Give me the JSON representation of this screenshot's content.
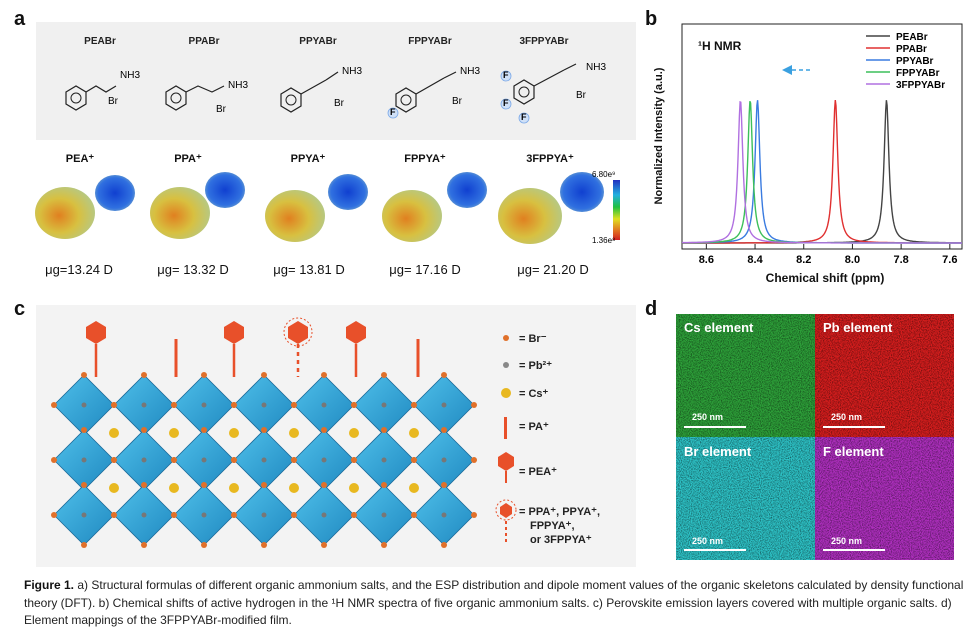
{
  "panels": {
    "a": "a",
    "b": "b",
    "c": "c",
    "d": "d"
  },
  "panel_a": {
    "molecules": [
      {
        "name": "PEABr",
        "ammonium": "NH3",
        "counter": "Br"
      },
      {
        "name": "PPABr",
        "ammonium": "NH3",
        "counter": "Br"
      },
      {
        "name": "PPYABr",
        "ammonium": "NH3",
        "counter": "Br"
      },
      {
        "name": "FPPYABr",
        "ammonium": "NH3",
        "counter": "Br"
      },
      {
        "name": "3FPPYABr",
        "ammonium": "NH3",
        "counter": "Br"
      }
    ],
    "fluorine_label": "F",
    "cations": [
      "PEA⁺",
      "PPA⁺",
      "PPYA⁺",
      "FPPYA⁺",
      "3FPPYA⁺"
    ],
    "dipoles": [
      "μg=13.24 D",
      "μg= 13.32 D",
      "μg= 13.81 D",
      "μg= 17.16 D",
      "μg= 21.20 D"
    ],
    "colorbar": {
      "max": "6.80e⁹",
      "min": "1.36e⁸"
    }
  },
  "chart_data": {
    "type": "line",
    "title": "¹H NMR",
    "xlabel": "Chemical shift (ppm)",
    "ylabel": "Normalized Intensity (a.u.)",
    "xlim": [
      8.7,
      7.55
    ],
    "x_ticks": [
      8.6,
      8.4,
      8.2,
      8.0,
      7.8,
      7.6
    ],
    "x_tick_labels": [
      "8.6",
      "8.4",
      "8.2",
      "8.0",
      "7.8",
      "7.6"
    ],
    "series": [
      {
        "name": "PEABr",
        "peak_ppm": 7.86,
        "color": "#444444"
      },
      {
        "name": "PPABr",
        "peak_ppm": 8.07,
        "color": "#e03030"
      },
      {
        "name": "PPYABr",
        "peak_ppm": 8.39,
        "color": "#3a7be0"
      },
      {
        "name": "FPPYABr",
        "peak_ppm": 8.42,
        "color": "#3cbf5a"
      },
      {
        "name": "3FPPYABr",
        "peak_ppm": 8.46,
        "color": "#b070e0"
      }
    ],
    "legend_position": "top-right"
  },
  "panel_c": {
    "legend": [
      {
        "label": "= Br⁻"
      },
      {
        "label": "= Pb²⁺"
      },
      {
        "label": "= Cs⁺"
      },
      {
        "label": "= PA⁺"
      },
      {
        "label": "= PEA⁺"
      },
      {
        "label_lines": [
          "= PPA⁺, PPYA⁺,",
          "FPPYA⁺,",
          "or 3FPPYA⁺"
        ]
      }
    ]
  },
  "panel_d": {
    "maps": [
      {
        "label": "Cs element",
        "scale": "250 nm",
        "color": "#2ea23a"
      },
      {
        "label": "Pb element",
        "scale": "250 nm",
        "color": "#d81e1e"
      },
      {
        "label": "Br element",
        "scale": "250 nm",
        "color": "#2ec4c8"
      },
      {
        "label": "F element",
        "scale": "250 nm",
        "color": "#b030c0"
      }
    ]
  },
  "caption": {
    "figure": "Figure 1.",
    "text": "a) Structural formulas of different organic ammonium salts, and the ESP distribution and dipole moment values of the organic skeletons calculated by density functional theory (DFT). b) Chemical shifts of active hydrogen in the ¹H NMR spectra of five organic ammonium salts. c) Perovskite emission layers covered with multiple organic salts. d) Element mappings of the 3FPPYABr-modified film."
  }
}
